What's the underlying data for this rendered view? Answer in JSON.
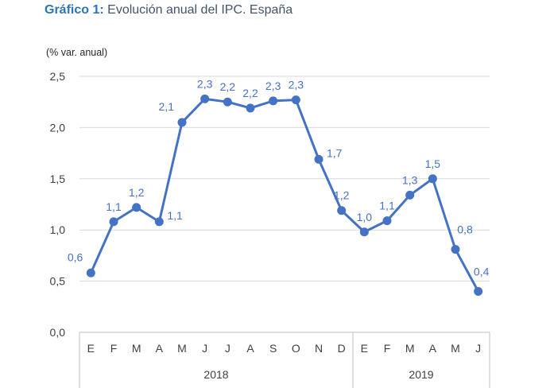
{
  "title": {
    "lead": "Gráfico 1:",
    "text": "Evolución anual del IPC. España"
  },
  "chart_data": {
    "type": "line",
    "unit_label": "(% var. anual)",
    "categories": [
      "E",
      "F",
      "M",
      "A",
      "M",
      "J",
      "J",
      "A",
      "S",
      "O",
      "N",
      "D",
      "E",
      "F",
      "M",
      "A",
      "M",
      "J"
    ],
    "years": [
      {
        "label": "2018",
        "count": 12
      },
      {
        "label": "2019",
        "count": 6
      }
    ],
    "series": [
      {
        "values": [
          0.58,
          1.08,
          1.22,
          1.08,
          2.05,
          2.28,
          2.25,
          2.19,
          2.26,
          2.27,
          1.69,
          1.19,
          0.98,
          1.09,
          1.34,
          1.5,
          0.81,
          0.4
        ],
        "labels": [
          "0,6",
          "1,1",
          "1,2",
          "1,1",
          "2,1",
          "2,3",
          "2,2",
          "2,2",
          "2,3",
          "2,3",
          "1,7",
          "1,2",
          "1,0",
          "1,1",
          "1,3",
          "1,5",
          "0,8",
          "0,4"
        ],
        "color": "#4472c4"
      }
    ],
    "ylim": [
      0,
      2.5
    ],
    "yticks": [
      "0,0",
      "0,5",
      "1,0",
      "1,5",
      "2,0",
      "2,5"
    ],
    "grid": true
  }
}
